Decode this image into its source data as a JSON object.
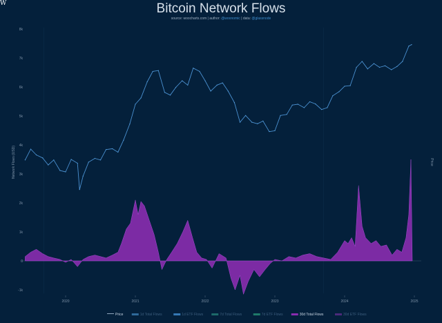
{
  "logo_text": "W",
  "chart_data": {
    "type": "line+area",
    "title": "Bitcoin Network Flows",
    "subtitle": {
      "source_label": "source:",
      "source": "woocharts.com",
      "author_label": "| author:",
      "author": "@woonomic",
      "data_label": "| data:",
      "data": "@glassnode"
    },
    "ylabel_left": "Network Flows (USD)",
    "ylabel_right": "Price",
    "x_ticks": [
      "2020",
      "2021",
      "2022",
      "2023",
      "2024",
      "2025"
    ],
    "y_left_ticks": [
      {
        "label": "8k",
        "value": 8
      },
      {
        "label": "7k",
        "value": 7
      },
      {
        "label": "6k",
        "value": 6
      },
      {
        "label": "5k",
        "value": 5
      },
      {
        "label": "4k",
        "value": 4
      },
      {
        "label": "3k",
        "value": 3
      },
      {
        "label": "2k",
        "value": 2
      },
      {
        "label": "1k",
        "value": 1
      },
      {
        "label": "0",
        "value": 0
      },
      {
        "label": "-1k",
        "value": -1
      }
    ],
    "price_scale": "log",
    "grid": false,
    "legend_position": "bottom",
    "legend": [
      {
        "name": "Price",
        "color": "#8fa6bd",
        "active": true
      },
      {
        "name": "1d Total Flows",
        "color": "#2f6a9a",
        "active": false
      },
      {
        "name": "1d ETF Flows",
        "color": "#3579b5",
        "active": false
      },
      {
        "name": "7d Total Flows",
        "color": "#1d6a6a",
        "active": false
      },
      {
        "name": "7d ETF Flows",
        "color": "#1f7a6a",
        "active": false
      },
      {
        "name": "30d Total Flows",
        "color": "#8a2cb0",
        "active": true
      },
      {
        "name": "30d ETF Flows",
        "color": "#4b2a7a",
        "active": false
      }
    ],
    "price_series": {
      "name": "Price",
      "color": "#4a90d0",
      "unit": "k USD",
      "t": [
        2019.42,
        2019.5,
        2019.58,
        2019.67,
        2019.75,
        2019.83,
        2019.92,
        2020.0,
        2020.08,
        2020.17,
        2020.2,
        2020.25,
        2020.33,
        2020.42,
        2020.5,
        2020.58,
        2020.67,
        2020.75,
        2020.83,
        2020.92,
        2021.0,
        2021.08,
        2021.17,
        2021.25,
        2021.33,
        2021.42,
        2021.5,
        2021.58,
        2021.67,
        2021.75,
        2021.83,
        2021.92,
        2022.0,
        2022.08,
        2022.17,
        2022.25,
        2022.33,
        2022.42,
        2022.5,
        2022.58,
        2022.67,
        2022.75,
        2022.83,
        2022.92,
        2023.0,
        2023.08,
        2023.17,
        2023.25,
        2023.33,
        2023.42,
        2023.5,
        2023.58,
        2023.67,
        2023.75,
        2023.83,
        2023.92,
        2024.0,
        2024.08,
        2024.17,
        2024.25,
        2024.33,
        2024.42,
        2024.5,
        2024.58,
        2024.67,
        2024.75,
        2024.83,
        2024.92,
        2024.96
      ],
      "values": [
        9.2,
        11.5,
        10.2,
        9.6,
        8.3,
        9.2,
        7.4,
        7.2,
        9.3,
        8.6,
        5.0,
        6.6,
        8.8,
        9.5,
        9.2,
        11.4,
        11.6,
        10.8,
        13.8,
        19.3,
        29,
        33,
        46,
        57,
        58,
        37,
        35,
        41,
        47,
        43,
        61,
        57,
        47,
        38,
        43,
        45,
        38,
        30,
        20,
        23,
        20,
        19.4,
        20.5,
        16.5,
        16.8,
        23,
        23.5,
        28.5,
        29,
        27,
        30.5,
        29.2,
        26,
        27,
        34.5,
        37.5,
        42,
        42.5,
        62,
        70,
        60,
        67,
        62,
        64,
        59,
        63,
        70,
        96,
        99
      ]
    },
    "flow_series": {
      "name": "30d Total Flows",
      "color": "#8a2cb0",
      "unit": "k",
      "t": [
        2019.42,
        2019.5,
        2019.58,
        2019.67,
        2019.75,
        2019.83,
        2019.92,
        2020.0,
        2020.08,
        2020.17,
        2020.25,
        2020.33,
        2020.42,
        2020.5,
        2020.58,
        2020.67,
        2020.75,
        2020.8,
        2020.87,
        2020.93,
        2021.0,
        2021.04,
        2021.08,
        2021.13,
        2021.2,
        2021.27,
        2021.33,
        2021.38,
        2021.45,
        2021.52,
        2021.6,
        2021.68,
        2021.75,
        2021.82,
        2021.88,
        2021.95,
        2022.02,
        2022.1,
        2022.2,
        2022.3,
        2022.37,
        2022.43,
        2022.5,
        2022.55,
        2022.62,
        2022.7,
        2022.78,
        2022.86,
        2022.93,
        2023.0,
        2023.1,
        2023.2,
        2023.3,
        2023.4,
        2023.5,
        2023.6,
        2023.7,
        2023.8,
        2023.9,
        2024.0,
        2024.05,
        2024.1,
        2024.15,
        2024.2,
        2024.25,
        2024.3,
        2024.38,
        2024.45,
        2024.52,
        2024.6,
        2024.68,
        2024.75,
        2024.82,
        2024.88,
        2024.92,
        2024.95,
        2024.97
      ],
      "values": [
        0.15,
        0.3,
        0.4,
        0.25,
        0.15,
        0.1,
        0.05,
        -0.05,
        0.05,
        -0.2,
        0.05,
        0.15,
        0.2,
        0.15,
        0.1,
        0.2,
        0.3,
        0.6,
        1.1,
        1.3,
        2.1,
        1.6,
        2.05,
        1.9,
        1.4,
        0.9,
        0.3,
        -0.3,
        0.05,
        0.3,
        0.6,
        1.0,
        1.4,
        0.8,
        0.3,
        0.1,
        0.05,
        -0.25,
        0.25,
        0.1,
        -0.6,
        -1.0,
        -0.5,
        -1.15,
        -0.7,
        -0.3,
        -0.55,
        -0.3,
        -0.1,
        0.05,
        0.0,
        0.15,
        0.1,
        0.2,
        0.25,
        0.15,
        0.1,
        0.05,
        0.3,
        0.7,
        0.6,
        0.8,
        0.5,
        2.6,
        1.2,
        0.8,
        0.6,
        0.7,
        0.5,
        0.55,
        0.2,
        0.4,
        0.3,
        0.8,
        1.6,
        3.5,
        0.0
      ]
    }
  }
}
